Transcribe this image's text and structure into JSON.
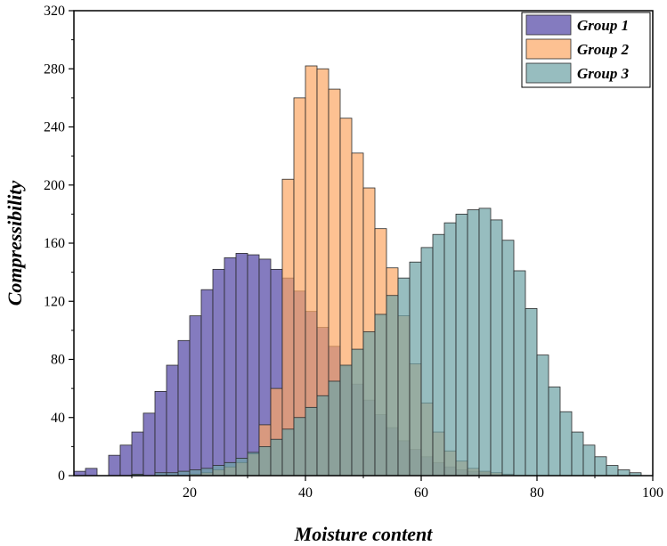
{
  "chart_data": {
    "type": "bar",
    "subtype": "histogram-overlay",
    "title": "",
    "xlabel": "Moisture content",
    "ylabel": "Compressibility",
    "xlim": [
      0,
      100
    ],
    "ylim": [
      0,
      320
    ],
    "xticks": [
      20,
      40,
      60,
      80,
      100
    ],
    "yticks": [
      0,
      40,
      80,
      120,
      160,
      200,
      240,
      280,
      320
    ],
    "grid": false,
    "legend_position": "top-right",
    "bin_width": 2,
    "series": [
      {
        "name": "Group 1",
        "color": "#6f64b4",
        "opacity": 0.85,
        "bins": [
          [
            0,
            3
          ],
          [
            2,
            5
          ],
          [
            6,
            14
          ],
          [
            8,
            21
          ],
          [
            10,
            30
          ],
          [
            12,
            43
          ],
          [
            14,
            58
          ],
          [
            16,
            76
          ],
          [
            18,
            93
          ],
          [
            20,
            110
          ],
          [
            22,
            128
          ],
          [
            24,
            142
          ],
          [
            26,
            150
          ],
          [
            28,
            153
          ],
          [
            30,
            152
          ],
          [
            32,
            149
          ],
          [
            34,
            142
          ],
          [
            36,
            136
          ],
          [
            38,
            127
          ],
          [
            40,
            113
          ],
          [
            42,
            102
          ],
          [
            44,
            89
          ],
          [
            46,
            75
          ],
          [
            48,
            63
          ],
          [
            50,
            52
          ],
          [
            52,
            42
          ],
          [
            54,
            33
          ],
          [
            56,
            24
          ],
          [
            58,
            18
          ],
          [
            60,
            13
          ],
          [
            62,
            9
          ],
          [
            64,
            6
          ],
          [
            66,
            4
          ],
          [
            68,
            3
          ],
          [
            70,
            2
          ],
          [
            72,
            1
          ],
          [
            74,
            1
          ]
        ]
      },
      {
        "name": "Group 2",
        "color": "#fca764",
        "opacity": 0.7,
        "bins": [
          [
            20,
            1
          ],
          [
            22,
            2
          ],
          [
            24,
            4
          ],
          [
            26,
            6
          ],
          [
            28,
            9
          ],
          [
            30,
            15
          ],
          [
            32,
            35
          ],
          [
            34,
            60
          ],
          [
            36,
            204
          ],
          [
            38,
            260
          ],
          [
            40,
            282
          ],
          [
            42,
            280
          ],
          [
            44,
            266
          ],
          [
            46,
            246
          ],
          [
            48,
            222
          ],
          [
            50,
            198
          ],
          [
            52,
            170
          ],
          [
            54,
            143
          ],
          [
            56,
            110
          ],
          [
            58,
            77
          ],
          [
            60,
            50
          ],
          [
            62,
            30
          ],
          [
            64,
            17
          ],
          [
            66,
            10
          ],
          [
            68,
            5
          ],
          [
            70,
            3
          ],
          [
            72,
            2
          ],
          [
            74,
            1
          ]
        ]
      },
      {
        "name": "Group 3",
        "color": "#6fa4a6",
        "opacity": 0.72,
        "bins": [
          [
            10,
            1
          ],
          [
            14,
            2
          ],
          [
            16,
            2
          ],
          [
            18,
            3
          ],
          [
            20,
            4
          ],
          [
            22,
            5
          ],
          [
            24,
            7
          ],
          [
            26,
            9
          ],
          [
            28,
            12
          ],
          [
            30,
            16
          ],
          [
            32,
            20
          ],
          [
            34,
            25
          ],
          [
            36,
            32
          ],
          [
            38,
            40
          ],
          [
            40,
            47
          ],
          [
            42,
            55
          ],
          [
            44,
            65
          ],
          [
            46,
            76
          ],
          [
            48,
            87
          ],
          [
            50,
            99
          ],
          [
            52,
            111
          ],
          [
            54,
            124
          ],
          [
            56,
            136
          ],
          [
            58,
            147
          ],
          [
            60,
            157
          ],
          [
            62,
            166
          ],
          [
            64,
            174
          ],
          [
            66,
            180
          ],
          [
            68,
            183
          ],
          [
            70,
            184
          ],
          [
            72,
            176
          ],
          [
            74,
            162
          ],
          [
            76,
            141
          ],
          [
            78,
            115
          ],
          [
            80,
            83
          ],
          [
            82,
            61
          ],
          [
            84,
            44
          ],
          [
            86,
            30
          ],
          [
            88,
            21
          ],
          [
            90,
            13
          ],
          [
            92,
            7
          ],
          [
            94,
            4
          ],
          [
            96,
            2
          ]
        ]
      }
    ]
  }
}
